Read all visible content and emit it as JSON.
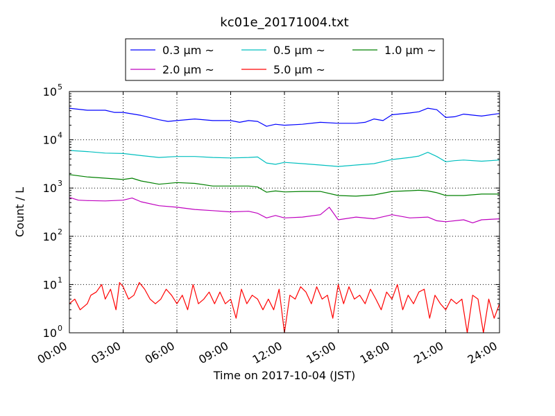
{
  "chart_data": {
    "type": "line",
    "title": "kc01e_20171004.txt",
    "xlabel": "Time on 2017-10-04 (JST)",
    "ylabel": "Count / L",
    "x_unit": "hours",
    "xlim": [
      0,
      24
    ],
    "ylim": [
      1,
      100000
    ],
    "yscale": "log",
    "grid": true,
    "legend_position": "top-center",
    "x_ticks": [
      {
        "value": 0,
        "label": "00:00"
      },
      {
        "value": 3,
        "label": "03:00"
      },
      {
        "value": 6,
        "label": "06:00"
      },
      {
        "value": 9,
        "label": "09:00"
      },
      {
        "value": 12,
        "label": "12:00"
      },
      {
        "value": 15,
        "label": "15:00"
      },
      {
        "value": 18,
        "label": "18:00"
      },
      {
        "value": 21,
        "label": "21:00"
      },
      {
        "value": 24,
        "label": "24:00"
      }
    ],
    "y_ticks": [
      {
        "value": 1,
        "base": "10",
        "exp": "0"
      },
      {
        "value": 10,
        "base": "10",
        "exp": "1"
      },
      {
        "value": 100,
        "base": "10",
        "exp": "2"
      },
      {
        "value": 1000,
        "base": "10",
        "exp": "3"
      },
      {
        "value": 10000,
        "base": "10",
        "exp": "4"
      },
      {
        "value": 100000,
        "base": "10",
        "exp": "5"
      }
    ],
    "series": [
      {
        "name": "0.3 μm ~",
        "color": "#0000ff",
        "x": [
          0,
          1,
          2,
          2.5,
          3,
          4,
          5,
          5.5,
          6,
          7,
          8,
          9,
          9.5,
          10,
          10.5,
          11,
          11.5,
          12,
          13,
          14,
          15,
          16,
          16.5,
          17,
          17.5,
          18,
          19,
          19.5,
          20,
          20.5,
          21,
          21.5,
          22,
          23,
          24
        ],
        "y": [
          45000,
          41000,
          41000,
          37000,
          37000,
          32000,
          26000,
          24000,
          25000,
          27000,
          25000,
          25000,
          23000,
          25000,
          24000,
          19000,
          21000,
          20000,
          21000,
          23000,
          22000,
          22000,
          23000,
          27000,
          25000,
          33000,
          36000,
          38000,
          45000,
          42000,
          29000,
          30000,
          34000,
          31000,
          35000
        ]
      },
      {
        "name": "0.5 μm ~",
        "color": "#00bfbf",
        "x": [
          0,
          1,
          2,
          3,
          4,
          5,
          6,
          7,
          8,
          9,
          10,
          10.5,
          11,
          11.5,
          12,
          13,
          14,
          15,
          16,
          17,
          18,
          19,
          19.5,
          20,
          20.5,
          21,
          21.5,
          22,
          23,
          24
        ],
        "y": [
          6000,
          5700,
          5300,
          5200,
          4700,
          4300,
          4500,
          4500,
          4300,
          4200,
          4300,
          4400,
          3300,
          3100,
          3400,
          3200,
          3000,
          2800,
          3000,
          3200,
          3900,
          4300,
          4600,
          5500,
          4500,
          3500,
          3700,
          3800,
          3600,
          3800
        ]
      },
      {
        "name": "1.0 μm ~",
        "color": "#008000",
        "x": [
          0,
          1,
          2,
          3,
          3.5,
          4,
          5,
          6,
          7,
          8,
          9,
          10,
          10.5,
          11,
          11.5,
          12,
          13,
          14,
          15,
          16,
          17,
          18,
          19,
          19.5,
          20,
          20.5,
          21,
          22,
          23,
          24
        ],
        "y": [
          1900,
          1700,
          1600,
          1500,
          1600,
          1400,
          1200,
          1300,
          1250,
          1100,
          1100,
          1100,
          1050,
          820,
          870,
          830,
          850,
          850,
          700,
          680,
          720,
          850,
          880,
          900,
          870,
          800,
          700,
          700,
          750,
          750
        ]
      },
      {
        "name": "2.0 μm ~",
        "color": "#bf00bf",
        "x": [
          0,
          0.5,
          1,
          2,
          3,
          3.5,
          4,
          5,
          6,
          7,
          8,
          9,
          10,
          10.5,
          11,
          11.5,
          12,
          13,
          14,
          14.5,
          15,
          16,
          17,
          18,
          19,
          20,
          20.5,
          21,
          22,
          22.5,
          23,
          24
        ],
        "y": [
          640,
          560,
          550,
          540,
          560,
          620,
          520,
          430,
          400,
          360,
          340,
          320,
          330,
          300,
          240,
          270,
          240,
          250,
          280,
          400,
          220,
          250,
          230,
          280,
          240,
          250,
          210,
          200,
          220,
          190,
          220,
          230
        ]
      },
      {
        "name": "5.0 μm ~",
        "color": "#ff0000",
        "x": [
          0,
          0.3,
          0.6,
          1,
          1.2,
          1.5,
          1.8,
          2,
          2.3,
          2.6,
          2.8,
          3,
          3.3,
          3.6,
          3.9,
          4.2,
          4.5,
          4.8,
          5.1,
          5.4,
          5.7,
          6,
          6.3,
          6.6,
          6.9,
          7.2,
          7.5,
          7.8,
          8.1,
          8.4,
          8.7,
          9,
          9.3,
          9.6,
          9.9,
          10.2,
          10.5,
          10.8,
          11.1,
          11.4,
          11.7,
          12,
          12.3,
          12.6,
          12.9,
          13.2,
          13.5,
          13.8,
          14.1,
          14.4,
          14.7,
          15,
          15.3,
          15.6,
          15.9,
          16.2,
          16.5,
          16.8,
          17.1,
          17.4,
          17.7,
          18,
          18.3,
          18.6,
          18.9,
          19.2,
          19.5,
          19.8,
          20.1,
          20.4,
          20.7,
          21,
          21.3,
          21.6,
          21.9,
          22.2,
          22.5,
          22.8,
          23.1,
          23.4,
          23.7,
          24
        ],
        "y": [
          4,
          5,
          3,
          4,
          6,
          7,
          10,
          5,
          8,
          3,
          11,
          9,
          5,
          6,
          11,
          8,
          5,
          4,
          5,
          8,
          6,
          4,
          6,
          3,
          10,
          4,
          5,
          7,
          4,
          7,
          4,
          5,
          2,
          8,
          4,
          6,
          5,
          3,
          5,
          3,
          8,
          1,
          6,
          5,
          9,
          7,
          4,
          9,
          5,
          6,
          2,
          10,
          4,
          9,
          5,
          6,
          4,
          8,
          5,
          3,
          7,
          5,
          10,
          3,
          6,
          4,
          7,
          8,
          2,
          6,
          4,
          3,
          5,
          4,
          5,
          1,
          6,
          5,
          1,
          5,
          2,
          4
        ]
      }
    ]
  }
}
